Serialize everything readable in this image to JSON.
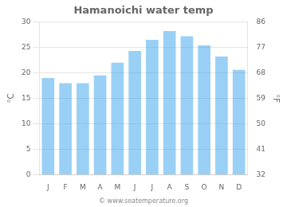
{
  "chart_data": {
    "type": "bar",
    "title": "Hamanoichi water temp",
    "categories": [
      "J",
      "F",
      "M",
      "A",
      "M",
      "J",
      "J",
      "A",
      "S",
      "O",
      "N",
      "D"
    ],
    "values": [
      19.0,
      18.0,
      18.0,
      19.5,
      22.0,
      24.3,
      26.5,
      28.2,
      27.2,
      25.4,
      23.2,
      20.6
    ],
    "ylim": [
      0,
      30
    ],
    "yticks": [
      0,
      5,
      10,
      15,
      20,
      25,
      30
    ],
    "y_label": "°C",
    "y2lim": [
      32,
      86
    ],
    "y2ticks": [
      32,
      41,
      50,
      59,
      68,
      77,
      86
    ],
    "y2_label": "°F",
    "annotations": [
      "© www.seatemperature.org"
    ],
    "grid": true
  }
}
